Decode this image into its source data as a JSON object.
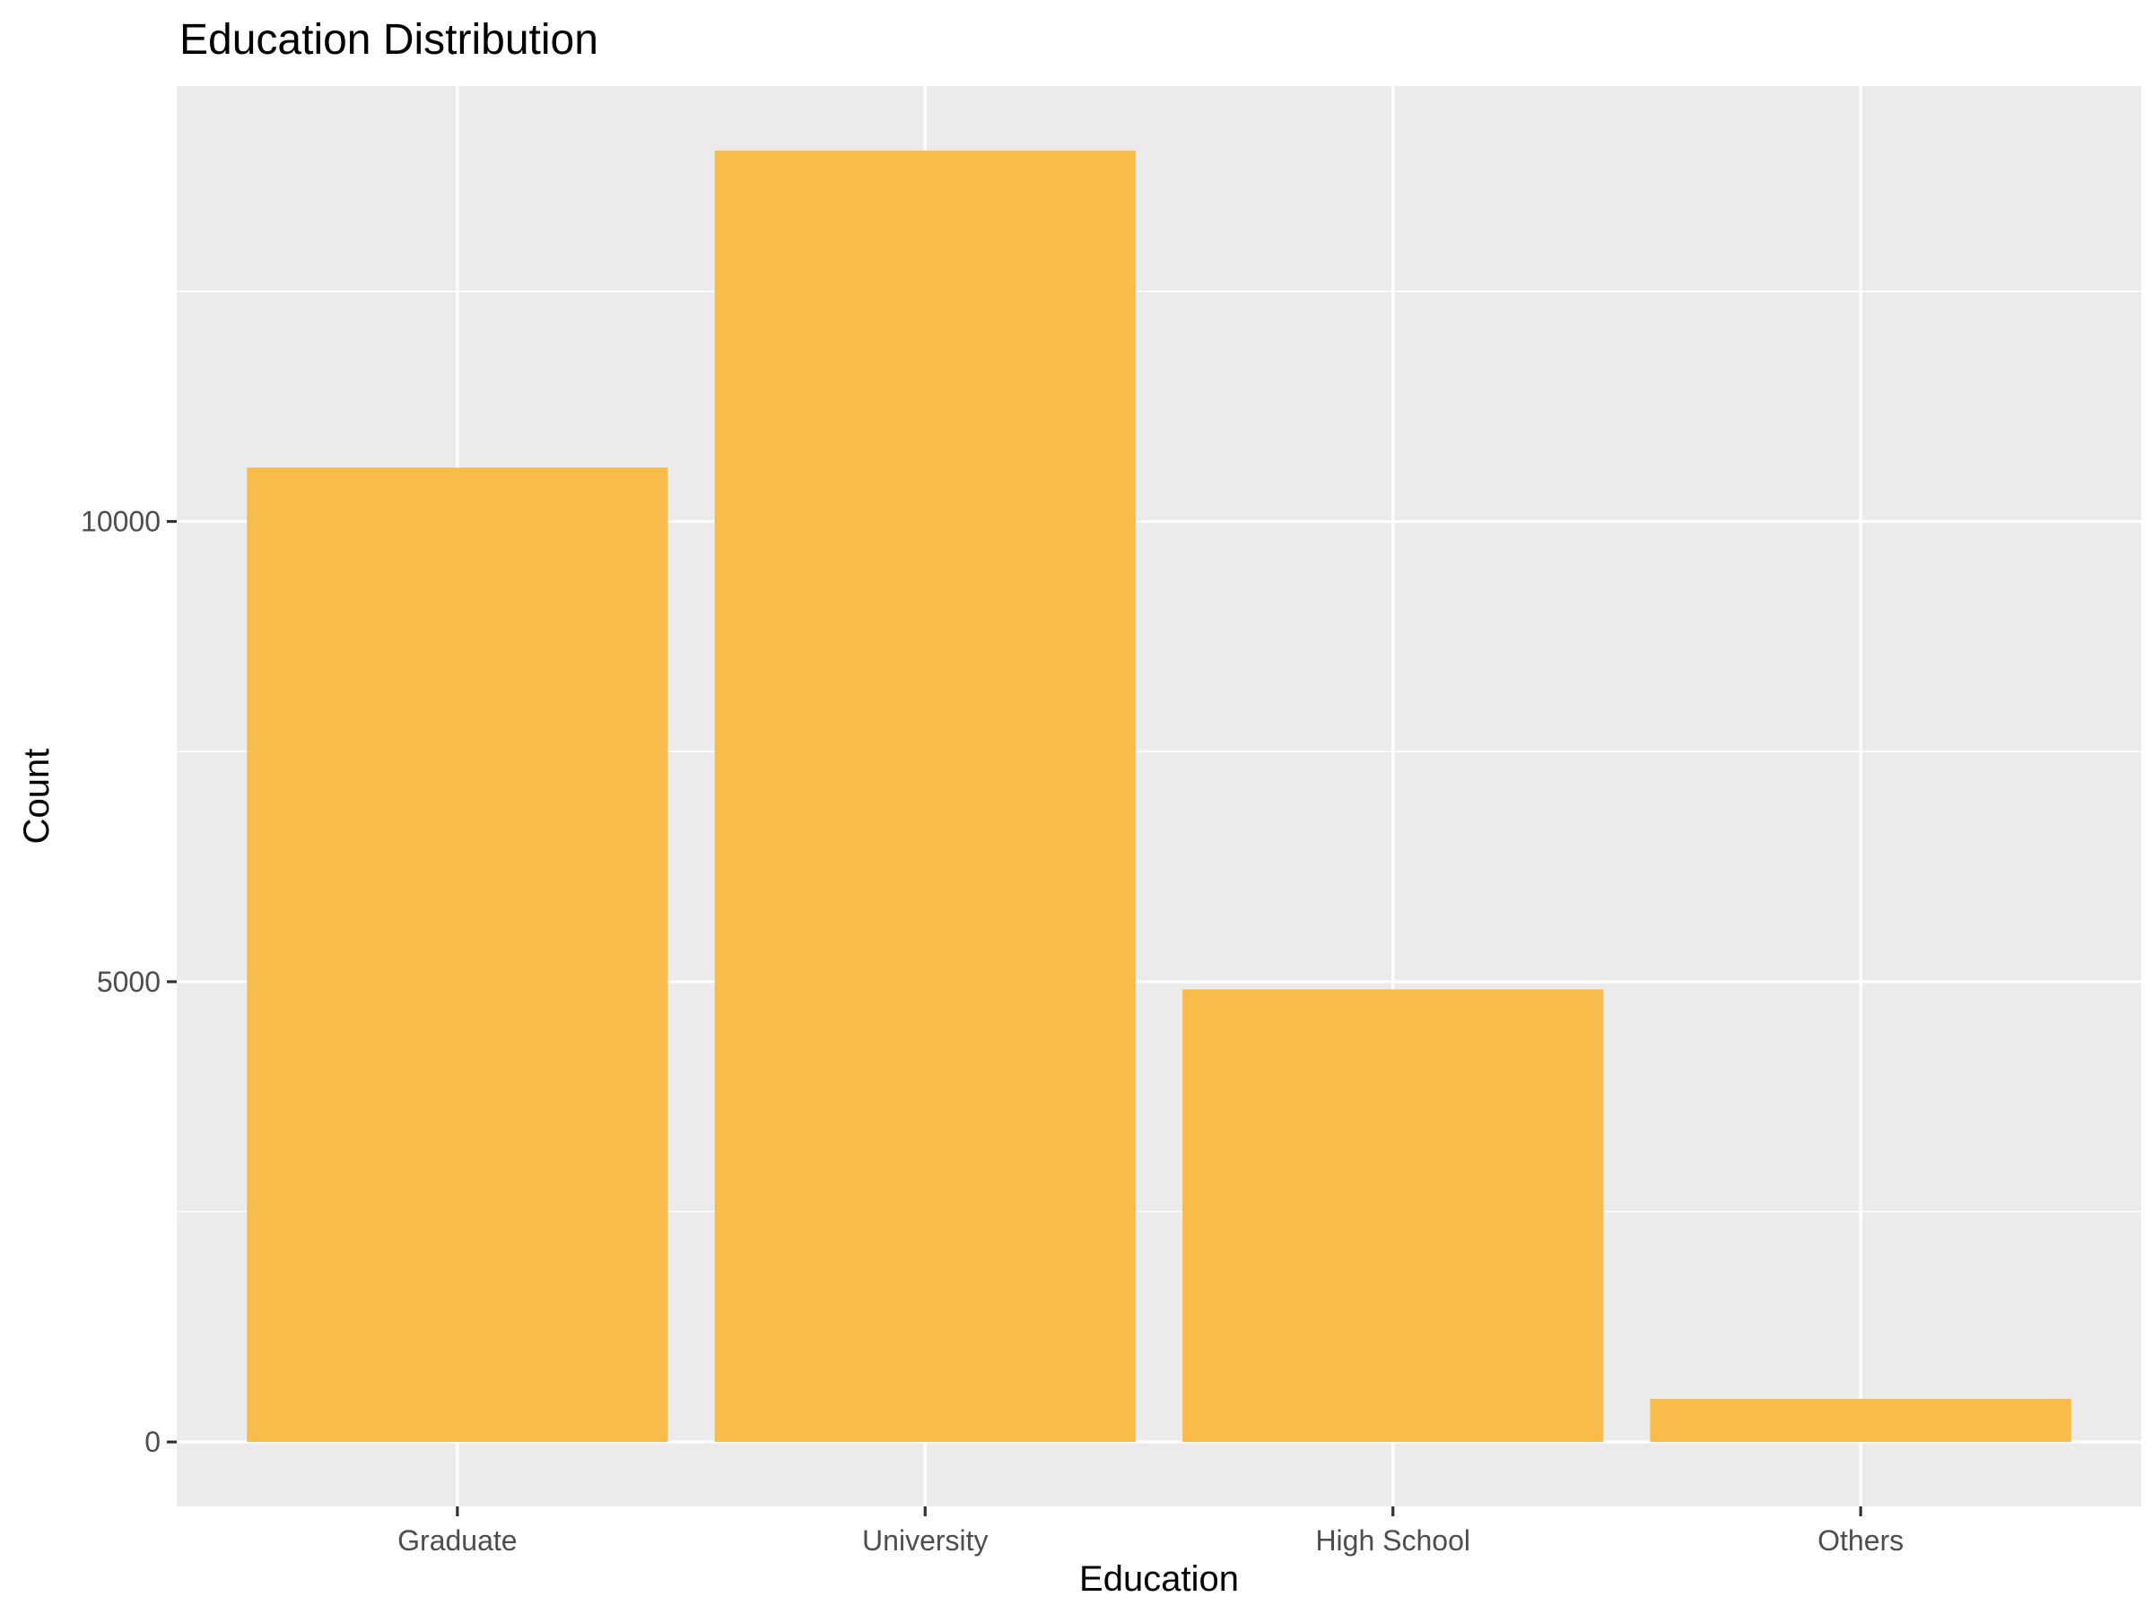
{
  "chart_data": {
    "type": "bar",
    "title": "Education Distribution",
    "xlabel": "Education",
    "ylabel": "Count",
    "categories": [
      "Graduate",
      "University",
      "High School",
      "Others"
    ],
    "values": [
      10585,
      14030,
      4917,
      468
    ],
    "ylim": [
      -700,
      14730
    ],
    "yticks": [
      0,
      5000,
      10000
    ],
    "ytick_labels": [
      "0",
      "5000",
      "10000"
    ],
    "grid": true,
    "legend": "none",
    "colors": {
      "bar": "#F9BB4A",
      "panel": "#EBEBEB",
      "grid": "#FFFFFF",
      "axis_text": "#4D4D4D",
      "tick": "#333333"
    }
  }
}
